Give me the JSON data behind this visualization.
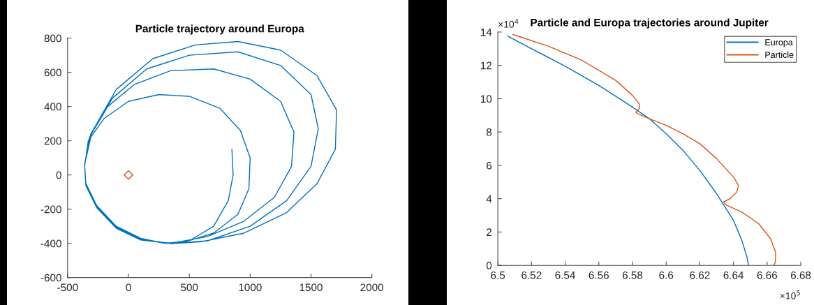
{
  "chart_data": [
    {
      "type": "line",
      "title": "Particle trajectory around Europa",
      "xlim": [
        -500,
        2000
      ],
      "ylim": [
        -600,
        800
      ],
      "xticks": [
        -500,
        0,
        500,
        1000,
        1500,
        2000
      ],
      "yticks": [
        -600,
        -400,
        -200,
        0,
        200,
        400,
        600,
        800
      ],
      "grid": false,
      "legend": false,
      "series": [
        {
          "color": "#0072bd",
          "x": [
            850,
            860,
            820,
            700,
            500,
            300,
            100,
            -100,
            -260,
            -350,
            -360,
            -330,
            -200,
            0,
            250,
            500,
            750,
            920,
            1000,
            990,
            900,
            700,
            450,
            300,
            100,
            -100,
            -260,
            -350,
            -360,
            -320,
            -170,
            50,
            350,
            700,
            1000,
            1250,
            1360,
            1340,
            1200,
            950,
            650,
            350,
            100,
            -100,
            -260,
            -350,
            -360,
            -310,
            -130,
            150,
            500,
            900,
            1250,
            1500,
            1560,
            1500,
            1300,
            1000,
            650,
            350,
            100,
            -100,
            -260,
            -350,
            -360,
            -300,
            -100,
            200,
            550,
            900,
            1250,
            1550,
            1710,
            1700,
            1550,
            1300,
            950,
            600,
            350
          ],
          "values": [
            150,
            0,
            -150,
            -300,
            -385,
            -400,
            -370,
            -300,
            -180,
            -50,
            50,
            200,
            330,
            430,
            470,
            460,
            390,
            260,
            100,
            -80,
            -230,
            -340,
            -395,
            -400,
            -375,
            -305,
            -185,
            -55,
            60,
            220,
            400,
            530,
            610,
            620,
            560,
            430,
            250,
            50,
            -130,
            -270,
            -360,
            -400,
            -378,
            -310,
            -190,
            -60,
            60,
            240,
            450,
            620,
            700,
            720,
            640,
            470,
            270,
            50,
            -150,
            -300,
            -385,
            -402,
            -380,
            -312,
            -192,
            -62,
            60,
            250,
            500,
            680,
            760,
            780,
            730,
            580,
            380,
            150,
            -50,
            -220,
            -340,
            -390,
            -402
          ]
        },
        {
          "type": "scatter",
          "color": "#d95319",
          "marker": "diamond",
          "x": [
            0
          ],
          "values": [
            0
          ]
        }
      ]
    },
    {
      "type": "line",
      "title": "Particle and Europa trajectories around Jupiter",
      "xlim": [
        6.5,
        6.68
      ],
      "ylim": [
        0,
        14
      ],
      "xticks": [
        6.5,
        6.52,
        6.54,
        6.56,
        6.58,
        6.6,
        6.62,
        6.64,
        6.66,
        6.68
      ],
      "yticks": [
        0,
        2,
        4,
        6,
        8,
        10,
        12,
        14
      ],
      "grid": false,
      "legend": "top right",
      "annotations": [
        "×10$^{4}$",
        "×10$^{5}$"
      ],
      "series": [
        {
          "name": "Europa",
          "color": "#0072bd",
          "x": [
            6.506,
            6.52,
            6.54,
            6.56,
            6.58,
            6.59,
            6.6,
            6.61,
            6.62,
            6.63,
            6.64,
            6.645,
            6.648,
            6.649
          ],
          "values": [
            13.75,
            13.0,
            11.95,
            10.8,
            9.5,
            8.8,
            7.9,
            6.9,
            5.7,
            4.3,
            2.7,
            1.5,
            0.5,
            0
          ]
        },
        {
          "name": "Particle",
          "color": "#d95319",
          "x": [
            6.509,
            6.53,
            6.55,
            6.57,
            6.58,
            6.584,
            6.584,
            6.582,
            6.583,
            6.59,
            6.6,
            6.61,
            6.62,
            6.63,
            6.64,
            6.643,
            6.642,
            6.638,
            6.634,
            6.636,
            6.645,
            6.655,
            6.662,
            6.665,
            6.665,
            6.664
          ],
          "values": [
            13.85,
            13.15,
            12.3,
            11.1,
            10.2,
            9.7,
            9.4,
            9.2,
            9.1,
            8.8,
            8.4,
            7.9,
            7.3,
            6.4,
            5.3,
            4.8,
            4.4,
            4.0,
            3.8,
            3.6,
            3.2,
            2.5,
            1.6,
            0.8,
            0.2,
            0
          ]
        }
      ]
    }
  ]
}
